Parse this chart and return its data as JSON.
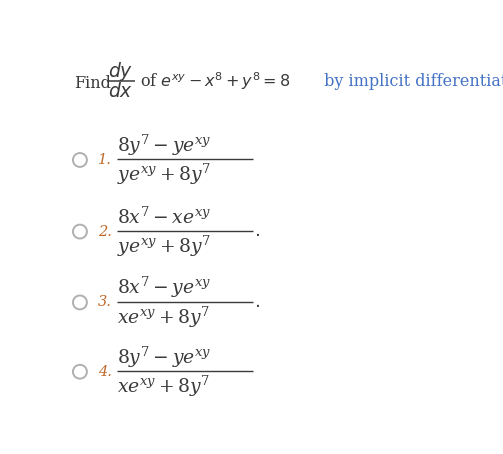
{
  "background_color": "#ffffff",
  "fig_width": 5.03,
  "fig_height": 4.54,
  "dpi": 100,
  "text_color": "#3a3a3a",
  "blue_color": "#4472c4",
  "orange_color": "#c0692a",
  "fraction_color": "#3a3a3a",
  "radio_color": "#b0b0b0",
  "header_fontsize": 11.5,
  "option_fontsize": 13.5,
  "number_fontsize": 10.5,
  "options": [
    {
      "number": "1.",
      "numerator": "$8y^7 - ye^{xy}$",
      "denominator": "$ye^{xy} + 8y^7$",
      "dot": false
    },
    {
      "number": "2.",
      "numerator": "$8x^7 - xe^{xy}$",
      "denominator": "$ye^{xy} + 8y^7$",
      "dot": true
    },
    {
      "number": "3.",
      "numerator": "$8x^7 - ye^{xy}$",
      "denominator": "$xe^{xy} + 8y^7$",
      "dot": true
    },
    {
      "number": "4.",
      "numerator": "$8y^7 - ye^{xy}$",
      "denominator": "$xe^{xy} + 8y^7$",
      "dot": false
    }
  ]
}
